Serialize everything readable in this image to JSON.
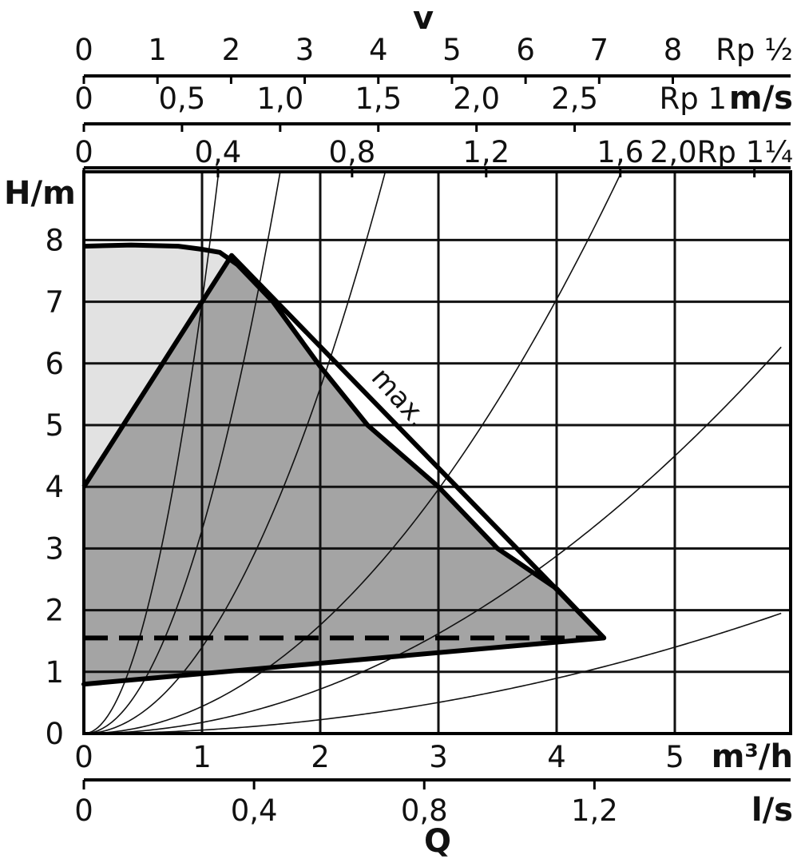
{
  "chart_data": {
    "type": "line",
    "title": "",
    "xlabel": "m³/h",
    "ylabel": "H/m",
    "xlim": [
      0,
      5.9
    ],
    "ylim": [
      0,
      9
    ],
    "x_ticks": [
      "0",
      "1",
      "2",
      "3",
      "4",
      "5"
    ],
    "y_ticks": [
      "0",
      "1",
      "2",
      "3",
      "4",
      "5",
      "6",
      "7",
      "8"
    ],
    "grid": true,
    "secondary_axes": [
      {
        "id": "ls",
        "position": "bottom",
        "unit_label": "l/s",
        "ticks": [
          {
            "label": "0",
            "value": 0
          },
          {
            "label": "0,4",
            "value": 0.4
          },
          {
            "label": "0,8",
            "value": 0.8
          },
          {
            "label": "1,2",
            "value": 1.2
          }
        ]
      },
      {
        "id": "rp1q",
        "position": "top",
        "unit_label": "2,0Rp 1¼",
        "ticks": [
          {
            "label": "0",
            "value": 0
          },
          {
            "label": "0,4",
            "value": 0.4
          },
          {
            "label": "0,8",
            "value": 0.8
          },
          {
            "label": "1,2",
            "value": 1.2
          },
          {
            "label": "1,6",
            "value": 1.6
          }
        ],
        "extra_tick": 2.0,
        "full_scale": 2.108
      },
      {
        "id": "rp1",
        "position": "top",
        "unit_label": "Rp 1",
        "unit_label_bold": "m/s",
        "ticks": [
          {
            "label": "0",
            "value": 0
          },
          {
            "label": "0,5",
            "value": 0.5
          },
          {
            "label": "1,0",
            "value": 1.0
          },
          {
            "label": "1,5",
            "value": 1.5
          },
          {
            "label": "2,0",
            "value": 2.0
          },
          {
            "label": "2,5",
            "value": 2.5
          }
        ],
        "full_scale": 3.6
      },
      {
        "id": "rphalf",
        "position": "top",
        "unit_label": "Rp ½",
        "ticks": [
          {
            "label": "0",
            "value": 0
          },
          {
            "label": "1",
            "value": 1
          },
          {
            "label": "2",
            "value": 2
          },
          {
            "label": "3",
            "value": 3
          },
          {
            "label": "4",
            "value": 4
          },
          {
            "label": "5",
            "value": 5
          },
          {
            "label": "6",
            "value": 6
          },
          {
            "label": "7",
            "value": 7
          },
          {
            "label": "8",
            "value": 8
          }
        ],
        "full_scale": 9.6
      }
    ],
    "top_title": "v",
    "bottom_title": "Q",
    "series": [
      {
        "name": "max.",
        "type": "line",
        "x": [
          0,
          0.4,
          0.8,
          1.0,
          1.15,
          1.3,
          1.6,
          2.0,
          2.4,
          3.0,
          3.5,
          4.0,
          4.4
        ],
        "y": [
          7.9,
          7.92,
          7.9,
          7.85,
          7.8,
          7.6,
          7.0,
          5.95,
          5.0,
          4.0,
          3.0,
          2.35,
          1.55
        ]
      },
      {
        "type": "line",
        "x": [
          0,
          1.25,
          4.4
        ],
        "y": [
          4.0,
          7.75,
          1.55
        ]
      },
      {
        "type": "line",
        "x": [
          0,
          4.4
        ],
        "y": [
          0.8,
          1.55
        ]
      },
      {
        "type": "dashed",
        "x": [
          0,
          4.4
        ],
        "y": [
          1.55,
          1.55
        ]
      }
    ],
    "system_curves": [
      {
        "k": 7.0
      },
      {
        "k": 3.3
      },
      {
        "k": 1.4
      },
      {
        "k": 0.44
      },
      {
        "k": 0.18
      },
      {
        "k": 0.056
      }
    ],
    "annotations": [
      "max."
    ],
    "regions": [
      {
        "fill": "#e2e2e2"
      },
      {
        "fill": "#a4a4a4"
      }
    ]
  }
}
